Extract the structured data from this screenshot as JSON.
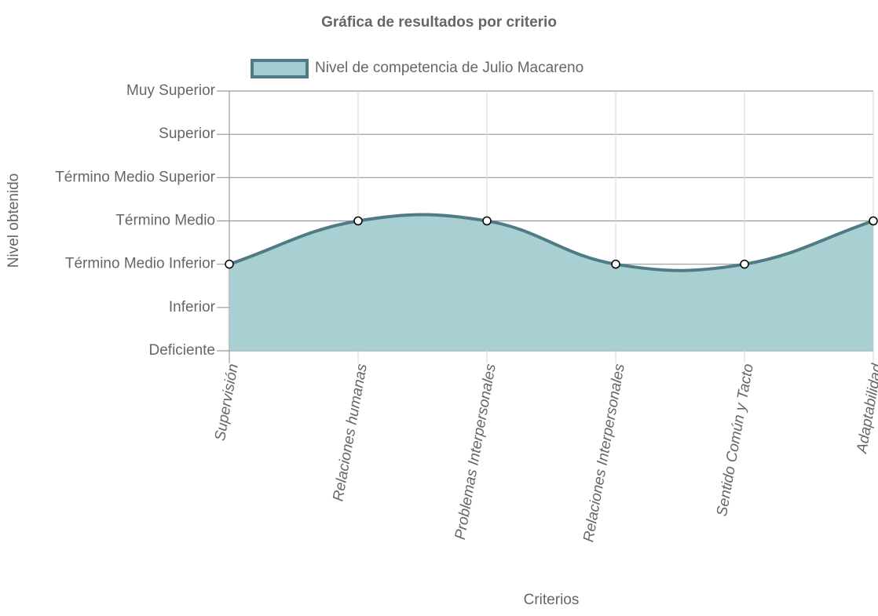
{
  "chart_data": {
    "type": "area",
    "title": "Gráfica de resultados por criterio",
    "x_label": "Criterios",
    "y_label": "Nivel obtenido",
    "categories": [
      "Supervisión",
      "Relaciones humanas",
      "Problemas Interpersonales",
      "Relaciones Interpersonales",
      "Sentido Común y Tacto",
      "Adaptabilidad"
    ],
    "series": [
      {
        "name": "Nivel de competencia de Julio Macareno",
        "color": "#4f7c84",
        "fill": "#a3cdd1",
        "values": [
          2,
          3,
          3,
          2,
          2,
          3
        ]
      }
    ],
    "ylim": [
      0,
      6
    ],
    "yticks": [
      {
        "value": 0,
        "label": "Deficiente"
      },
      {
        "value": 1,
        "label": "Inferior"
      },
      {
        "value": 2,
        "label": "Término Medio Inferior"
      },
      {
        "value": 3,
        "label": "Término Medio"
      },
      {
        "value": 4,
        "label": "Término Medio Superior"
      },
      {
        "value": 5,
        "label": "Superior"
      },
      {
        "value": 6,
        "label": "Muy Superior"
      }
    ],
    "grid": true
  }
}
